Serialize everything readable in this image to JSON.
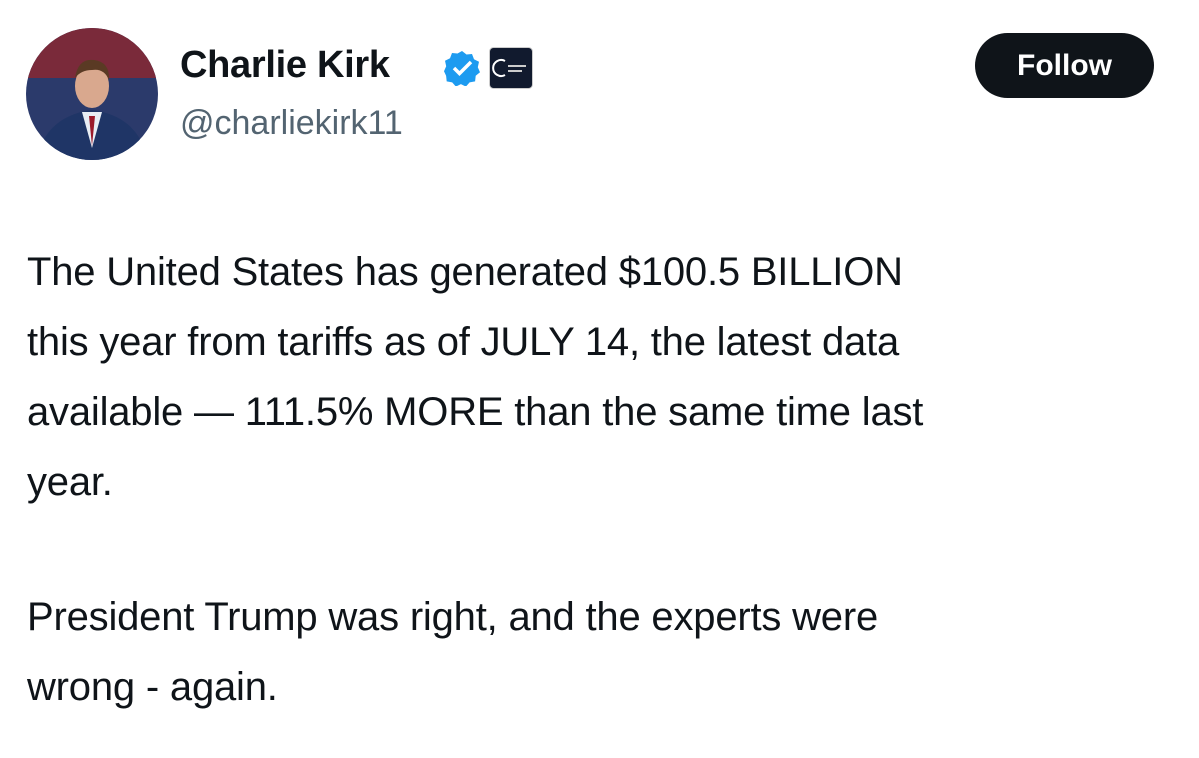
{
  "author": {
    "name": "Charlie Kirk",
    "handle": "@charliekirk11"
  },
  "follow_button": {
    "label": "Follow"
  },
  "body": {
    "paragraphs": [
      [
        "The United States has generated $100.5 BILLION",
        "this year from tariffs as of JULY 14, the latest data",
        "available — 111.5% MORE than the same time last",
        "year."
      ],
      [
        "President Trump was right, and the experts were",
        "wrong - again."
      ]
    ]
  }
}
